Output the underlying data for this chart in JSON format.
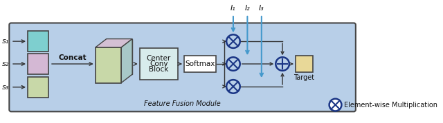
{
  "fig_width": 6.4,
  "fig_height": 1.79,
  "bg_color": "#b8cfe8",
  "s_box_colors": [
    "#7ecfcf",
    "#d4b8d4",
    "#c8d8a8"
  ],
  "concat_front_color": "#c8d8a8",
  "concat_top_color": "#d4c0d4",
  "concat_right_color": "#a8c8c8",
  "target_color": "#e8d898",
  "arrow_color": "#333333",
  "blue_arrow_color": "#4499cc",
  "circle_color": "#1a3585",
  "circle_bg": "#b8cfe8",
  "box_edge_color": "#444444",
  "text_color": "#111111",
  "module_label": "Feature Fusion Module",
  "s_labels": [
    "s₁",
    "s₂",
    "s₃"
  ],
  "i_labels": [
    "I₁",
    "I₂",
    "I₃"
  ]
}
